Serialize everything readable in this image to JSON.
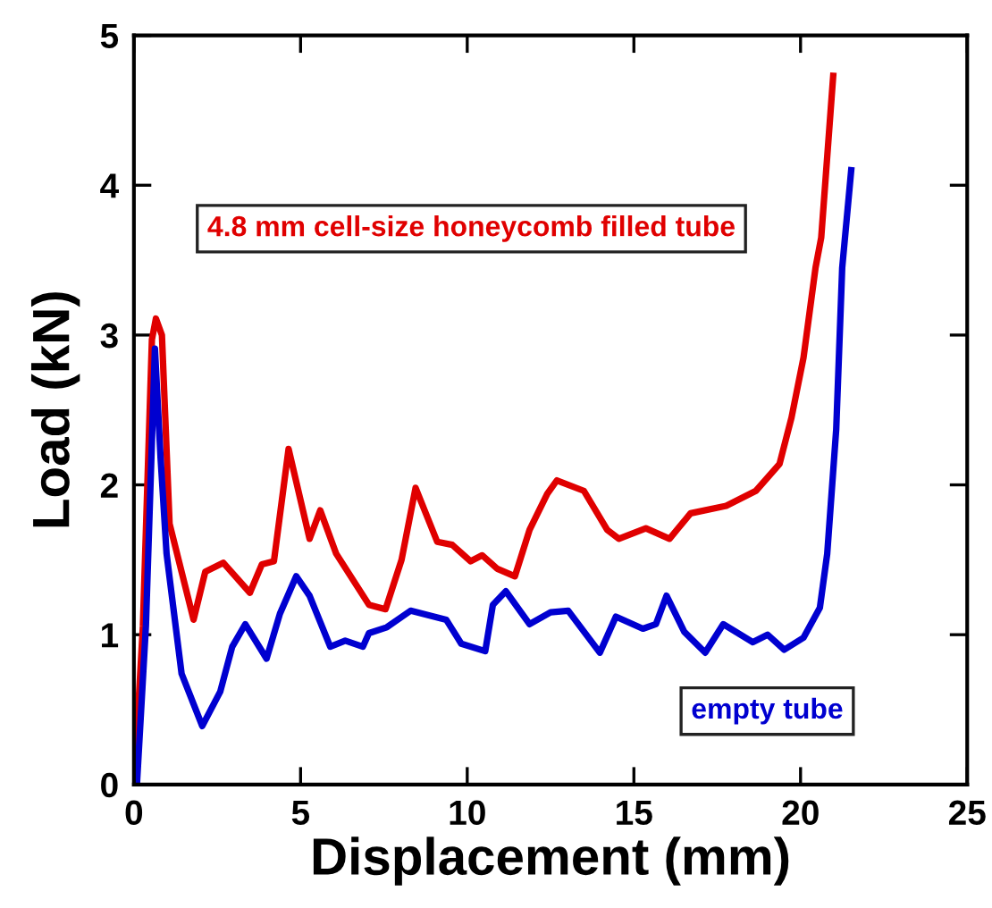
{
  "chart_data": {
    "type": "line",
    "xlabel": "Displacement (mm)",
    "ylabel": "Load (kN)",
    "xlim": [
      0,
      25
    ],
    "xticks": [
      0,
      5,
      10,
      15,
      20,
      25
    ],
    "ylim": [
      0,
      5
    ],
    "yticks": [
      0,
      1,
      2,
      3,
      4,
      5
    ],
    "grid": false,
    "legend": false,
    "marker": "none",
    "line_style": "solid",
    "series": [
      {
        "name": "4.8 mm cell-size honeycomb filled tube",
        "color": "#e00000",
        "x": [
          0,
          0.27,
          0.54,
          0.66,
          0.84,
          1.07,
          1.79,
          2.14,
          2.68,
          3.48,
          3.84,
          4.2,
          4.64,
          5.27,
          5.59,
          6.07,
          7.05,
          7.55,
          8.03,
          8.45,
          9.1,
          9.55,
          10.1,
          10.45,
          10.9,
          11.43,
          11.87,
          12.4,
          12.69,
          13.5,
          14.2,
          14.55,
          15.36,
          16.07,
          16.7,
          17.77,
          18.66,
          19.37,
          19.73,
          20.09,
          20.45,
          20.62,
          20.98
        ],
        "values": [
          0,
          1.06,
          2.97,
          3.11,
          3.0,
          1.74,
          1.1,
          1.42,
          1.48,
          1.28,
          1.47,
          1.49,
          2.24,
          1.64,
          1.83,
          1.54,
          1.2,
          1.17,
          1.5,
          1.98,
          1.62,
          1.6,
          1.49,
          1.53,
          1.44,
          1.39,
          1.7,
          1.94,
          2.03,
          1.96,
          1.7,
          1.64,
          1.71,
          1.64,
          1.81,
          1.86,
          1.96,
          2.14,
          2.45,
          2.85,
          3.45,
          3.65,
          4.73
        ]
      },
      {
        "name": "empty tube",
        "color": "#0000d0",
        "x": [
          0.09,
          0.36,
          0.63,
          0.8,
          0.98,
          1.43,
          2.05,
          2.59,
          2.95,
          3.34,
          3.98,
          4.38,
          4.87,
          5.27,
          5.89,
          6.34,
          6.87,
          7.05,
          7.59,
          8.3,
          9.37,
          9.82,
          10.54,
          10.77,
          11.16,
          11.87,
          12.5,
          13.03,
          13.98,
          14.46,
          15.27,
          15.66,
          15.98,
          16.51,
          17.14,
          17.68,
          18.57,
          19.01,
          19.51,
          20.09,
          20.58,
          20.8,
          21.07,
          21.25,
          21.52
        ],
        "values": [
          0,
          1.06,
          2.91,
          2.18,
          1.54,
          0.74,
          0.39,
          0.62,
          0.92,
          1.07,
          0.84,
          1.14,
          1.39,
          1.26,
          0.92,
          0.96,
          0.92,
          1.01,
          1.05,
          1.16,
          1.1,
          0.94,
          0.89,
          1.2,
          1.29,
          1.07,
          1.15,
          1.16,
          0.88,
          1.12,
          1.04,
          1.07,
          1.26,
          1.02,
          0.88,
          1.07,
          0.95,
          1.0,
          0.9,
          0.98,
          1.18,
          1.54,
          2.37,
          3.45,
          4.1
        ]
      }
    ]
  }
}
